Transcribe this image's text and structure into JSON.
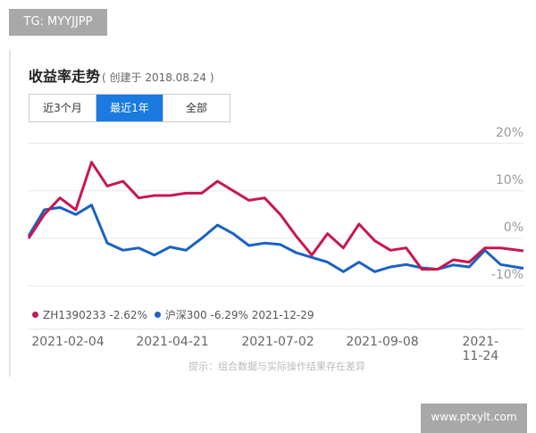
{
  "watermark_top": "TG: MYYJJPP",
  "watermark_bottom": "www.ptxylt.com",
  "header": {
    "title": "收益率走势",
    "subtitle": "( 创建于 2018.08.24 )"
  },
  "tabs": [
    {
      "label": "近3个月",
      "active": false
    },
    {
      "label": "最近1年",
      "active": true
    },
    {
      "label": "全部",
      "active": false
    }
  ],
  "legend": {
    "series1": "ZH1390233 -2.62%",
    "series2": "沪深300 -6.29%",
    "date": "2021-12-29"
  },
  "note": "提示：组合数据与实际操作结果存在差异",
  "chart_data": {
    "type": "line",
    "xlim": [
      "2021-01-17",
      "2021-12-29"
    ],
    "ylim": [
      -10,
      20
    ],
    "y_ticks": [
      "20%",
      "10%",
      "0%",
      "-10%"
    ],
    "y_tick_values": [
      20,
      10,
      0,
      -10
    ],
    "x_ticks": [
      "2021-02-04",
      "2021-04-21",
      "2021-07-02",
      "2021-09-08",
      "2021-11-24"
    ],
    "grid": true,
    "legend_position": "bottom-left",
    "x": [
      "2021-01-17",
      "2021-01-28",
      "2021-02-08",
      "2021-02-19",
      "2021-03-02",
      "2021-03-13",
      "2021-03-24",
      "2021-04-04",
      "2021-04-15",
      "2021-04-26",
      "2021-05-07",
      "2021-05-18",
      "2021-05-29",
      "2021-06-09",
      "2021-06-20",
      "2021-07-01",
      "2021-07-12",
      "2021-07-23",
      "2021-08-03",
      "2021-08-14",
      "2021-08-25",
      "2021-09-05",
      "2021-09-16",
      "2021-09-27",
      "2021-10-08",
      "2021-10-19",
      "2021-10-30",
      "2021-11-10",
      "2021-11-21",
      "2021-12-02",
      "2021-12-13",
      "2021-12-29"
    ],
    "series": [
      {
        "name": "ZH1390233",
        "color": "#c8174f",
        "values": [
          0,
          5,
          8.5,
          6,
          16,
          11,
          12,
          8.5,
          9,
          9,
          9.5,
          9.5,
          12,
          10,
          8,
          8.5,
          5,
          0.5,
          -3.5,
          1,
          -2,
          3,
          -0.5,
          -2.5,
          -2,
          -6.5,
          -6.5,
          -4.5,
          -5,
          -2,
          -2,
          -2.62
        ]
      },
      {
        "name": "沪深300",
        "color": "#1a62c0",
        "values": [
          0.5,
          6,
          6.5,
          5,
          7,
          -1,
          -2.5,
          -2,
          -3.5,
          -1.8,
          -2.5,
          0,
          2.8,
          1,
          -1.5,
          -1,
          -1.3,
          -3,
          -4,
          -5,
          -7,
          -5,
          -7,
          -6,
          -5.5,
          -6.2,
          -6.5,
          -5.6,
          -6,
          -2.5,
          -5.5,
          -6.29
        ]
      }
    ]
  }
}
